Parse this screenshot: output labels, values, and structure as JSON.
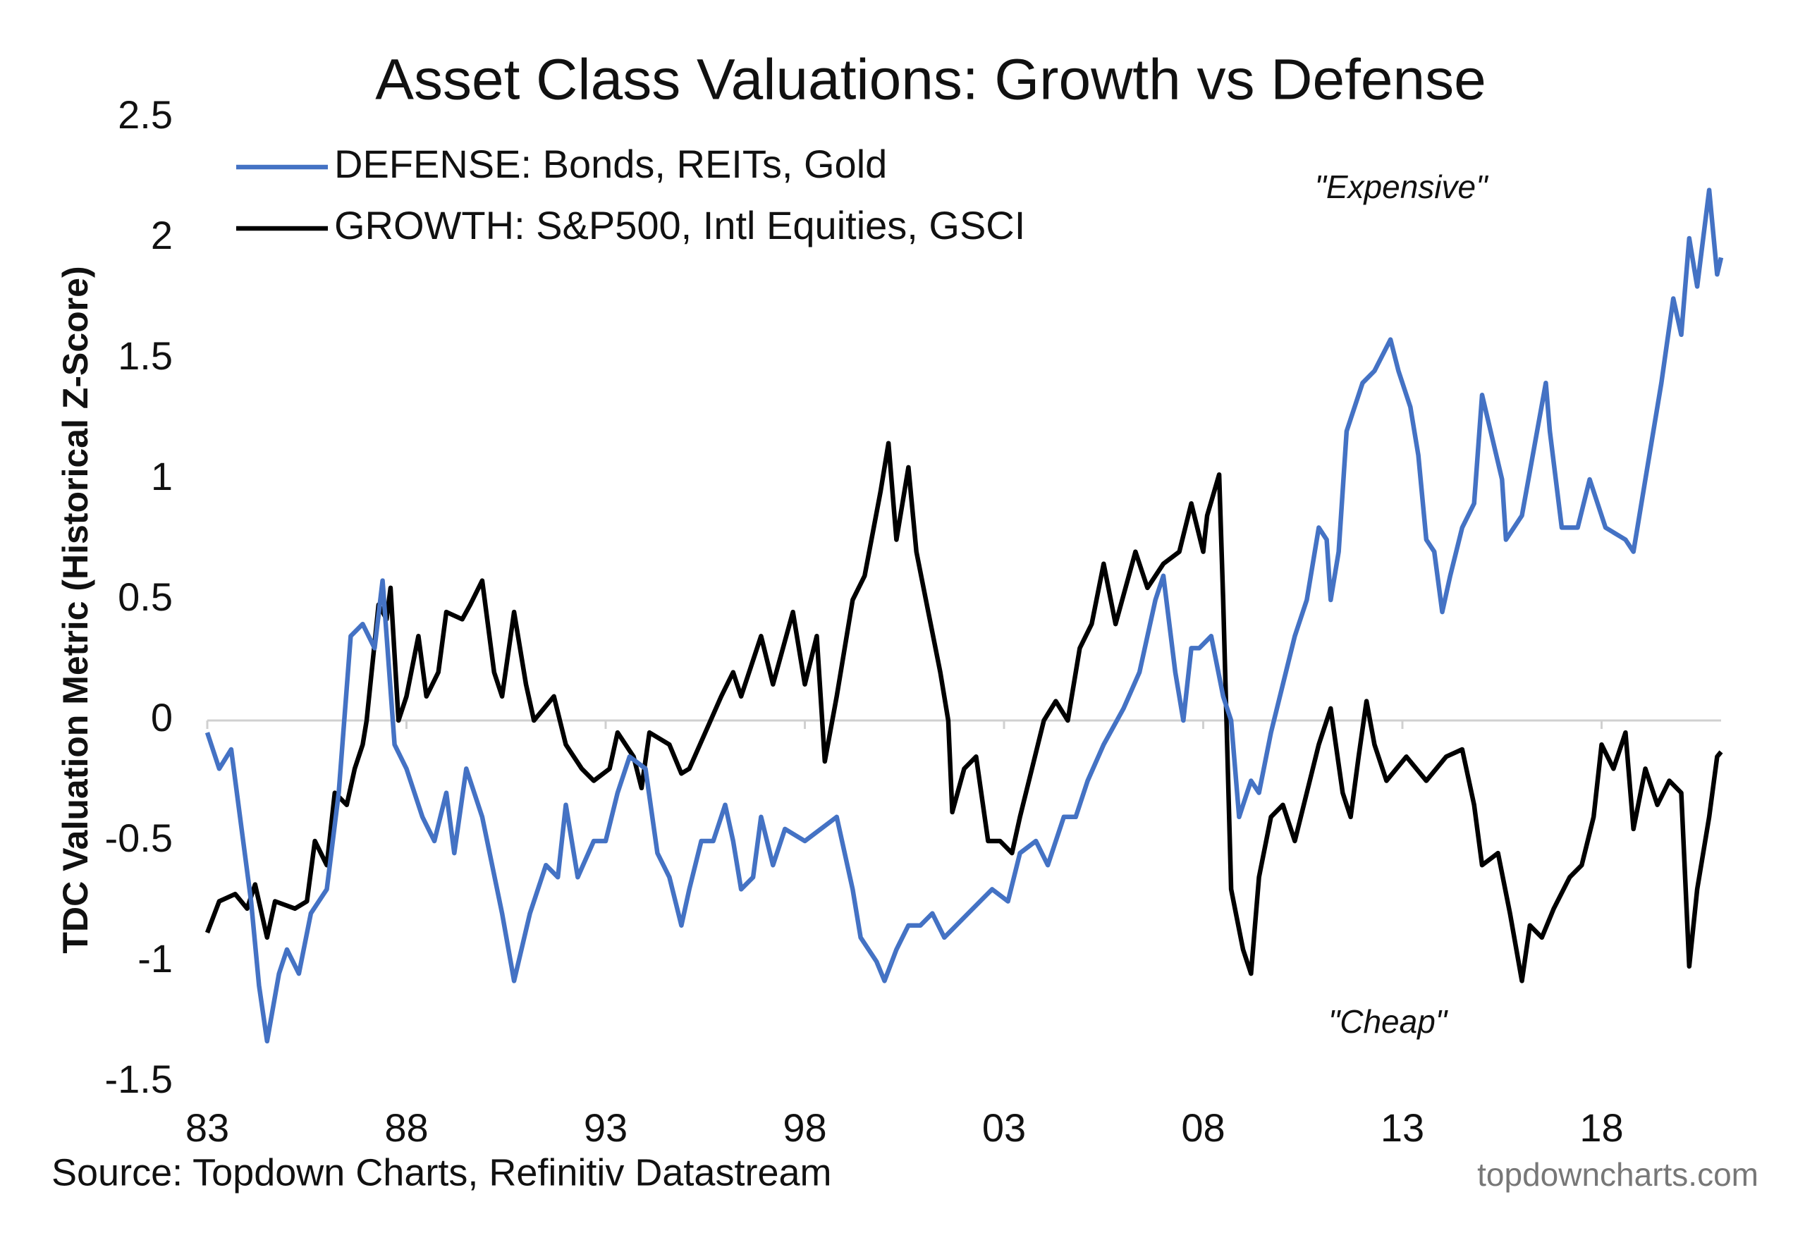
{
  "chart_data": {
    "type": "line",
    "title": "Asset Class Valuations: Growth vs Defense",
    "y_label": "TDC Valuation Metric (Historical Z-Score)",
    "annotations": [
      "\"Expensive\"",
      "\"Cheap\""
    ],
    "source": "Source: Topdown Charts, Refinitiv Datastream",
    "watermark": "topdowncharts.com",
    "xlim": [
      1983,
      2021
    ],
    "xticks": [
      {
        "value": 1983,
        "label": "83"
      },
      {
        "value": 1988,
        "label": "88"
      },
      {
        "value": 1993,
        "label": "93"
      },
      {
        "value": 1998,
        "label": "98"
      },
      {
        "value": 2003,
        "label": "03"
      },
      {
        "value": 2008,
        "label": "08"
      },
      {
        "value": 2013,
        "label": "13"
      },
      {
        "value": 2018,
        "label": "18"
      }
    ],
    "ylim": [
      -1.5,
      2.5
    ],
    "yticks": [
      -1.5,
      -1,
      -0.5,
      0,
      0.5,
      1,
      1.5,
      2,
      2.5
    ],
    "grid": false,
    "legend": "top-left",
    "series": [
      {
        "name": "DEFENSE: Bonds, REITs, Gold",
        "color": "#4472c4",
        "x": [
          1983.0,
          1983.3,
          1983.6,
          1983.9,
          1984.1,
          1984.3,
          1984.5,
          1984.8,
          1985.0,
          1985.3,
          1985.6,
          1986.0,
          1986.3,
          1986.6,
          1986.9,
          1987.2,
          1987.4,
          1987.7,
          1988.0,
          1988.4,
          1988.7,
          1989.0,
          1989.2,
          1989.5,
          1989.9,
          1990.4,
          1990.7,
          1991.1,
          1991.5,
          1991.8,
          1992.0,
          1992.3,
          1992.7,
          1993.0,
          1993.3,
          1993.6,
          1994.0,
          1994.3,
          1994.6,
          1994.9,
          1995.1,
          1995.4,
          1995.7,
          1996.0,
          1996.2,
          1996.4,
          1996.7,
          1996.9,
          1997.2,
          1997.5,
          1998.0,
          1998.8,
          1999.2,
          1999.4,
          1999.8,
          2000.0,
          2000.3,
          2000.6,
          2000.9,
          2001.2,
          2001.5,
          2002.1,
          2002.7,
          2003.1,
          2003.4,
          2003.8,
          2004.1,
          2004.5,
          2004.8,
          2005.1,
          2005.5,
          2006.0,
          2006.4,
          2006.8,
          2007.0,
          2007.3,
          2007.5,
          2007.7,
          2007.9,
          2008.2,
          2008.5,
          2008.7,
          2008.9,
          2009.2,
          2009.4,
          2009.7,
          2010.0,
          2010.3,
          2010.6,
          2010.9,
          2011.1,
          2011.2,
          2011.4,
          2011.6,
          2012.0,
          2012.3,
          2012.7,
          2012.9,
          2013.2,
          2013.4,
          2013.6,
          2013.8,
          2014.0,
          2014.2,
          2014.5,
          2014.8,
          2015.0,
          2015.5,
          2015.6,
          2016.0,
          2016.6,
          2016.7,
          2017.0,
          2017.4,
          2017.7,
          2018.1,
          2018.6,
          2018.8,
          2019.1,
          2019.5,
          2019.8,
          2020.0,
          2020.2,
          2020.4,
          2020.7,
          2020.9,
          2021.0
        ],
        "values": [
          -0.05,
          -0.2,
          -0.12,
          -0.5,
          -0.75,
          -1.1,
          -1.33,
          -1.05,
          -0.95,
          -1.05,
          -0.8,
          -0.7,
          -0.3,
          0.35,
          0.4,
          0.3,
          0.58,
          -0.1,
          -0.2,
          -0.4,
          -0.5,
          -0.3,
          -0.55,
          -0.2,
          -0.4,
          -0.8,
          -1.08,
          -0.8,
          -0.6,
          -0.65,
          -0.35,
          -0.65,
          -0.5,
          -0.5,
          -0.3,
          -0.15,
          -0.2,
          -0.55,
          -0.65,
          -0.85,
          -0.7,
          -0.5,
          -0.5,
          -0.35,
          -0.5,
          -0.7,
          -0.65,
          -0.4,
          -0.6,
          -0.45,
          -0.5,
          -0.4,
          -0.7,
          -0.9,
          -1.0,
          -1.08,
          -0.95,
          -0.85,
          -0.85,
          -0.8,
          -0.9,
          -0.8,
          -0.7,
          -0.75,
          -0.55,
          -0.5,
          -0.6,
          -0.4,
          -0.4,
          -0.25,
          -0.1,
          0.05,
          0.2,
          0.5,
          0.6,
          0.2,
          0.0,
          0.3,
          0.3,
          0.35,
          0.1,
          0.0,
          -0.4,
          -0.25,
          -0.3,
          -0.05,
          0.15,
          0.35,
          0.5,
          0.8,
          0.75,
          0.5,
          0.7,
          1.2,
          1.4,
          1.45,
          1.58,
          1.45,
          1.3,
          1.1,
          0.75,
          0.7,
          0.45,
          0.6,
          0.8,
          0.9,
          1.35,
          1.0,
          0.75,
          0.85,
          1.4,
          1.2,
          0.8,
          0.8,
          1.0,
          0.8,
          0.75,
          0.7,
          1.0,
          1.4,
          1.75,
          1.6,
          2.0,
          1.8,
          2.2,
          1.85,
          1.92
        ]
      },
      {
        "name": "GROWTH: S&P500, Intl Equities, GSCI",
        "color": "#000000",
        "x": [
          1983.0,
          1983.3,
          1983.7,
          1984.0,
          1984.2,
          1984.5,
          1984.7,
          1985.2,
          1985.5,
          1985.7,
          1986.0,
          1986.2,
          1986.5,
          1986.7,
          1986.9,
          1987.0,
          1987.3,
          1987.5,
          1987.6,
          1987.8,
          1988.0,
          1988.3,
          1988.5,
          1988.8,
          1989.0,
          1989.4,
          1989.6,
          1989.9,
          1990.2,
          1990.4,
          1990.7,
          1991.0,
          1991.2,
          1991.7,
          1992.0,
          1992.4,
          1992.7,
          1993.1,
          1993.3,
          1993.7,
          1993.9,
          1994.1,
          1994.6,
          1994.9,
          1995.1,
          1995.5,
          1995.9,
          1996.2,
          1996.4,
          1996.9,
          1997.2,
          1997.7,
          1998.0,
          1998.3,
          1998.5,
          1998.8,
          1999.2,
          1999.5,
          1999.9,
          2000.1,
          2000.3,
          2000.6,
          2000.8,
          2001.1,
          2001.4,
          2001.6,
          2001.7,
          2002.0,
          2002.3,
          2002.6,
          2002.9,
          2003.2,
          2003.4,
          2003.7,
          2004.0,
          2004.3,
          2004.6,
          2004.9,
          2005.2,
          2005.5,
          2005.8,
          2006.3,
          2006.6,
          2007.0,
          2007.4,
          2007.7,
          2008.0,
          2008.1,
          2008.4,
          2008.5,
          2008.7,
          2009.0,
          2009.2,
          2009.4,
          2009.7,
          2010.0,
          2010.3,
          2010.6,
          2010.9,
          2011.2,
          2011.5,
          2011.7,
          2011.9,
          2012.1,
          2012.3,
          2012.6,
          2013.1,
          2013.6,
          2014.1,
          2014.5,
          2014.8,
          2015.0,
          2015.4,
          2015.7,
          2016.0,
          2016.2,
          2016.5,
          2016.8,
          2017.2,
          2017.5,
          2017.8,
          2018.0,
          2018.3,
          2018.6,
          2018.8,
          2019.1,
          2019.4,
          2019.7,
          2020.0,
          2020.2,
          2020.4,
          2020.7,
          2020.9,
          2021.0
        ],
        "values": [
          -0.88,
          -0.75,
          -0.72,
          -0.78,
          -0.68,
          -0.9,
          -0.75,
          -0.78,
          -0.75,
          -0.5,
          -0.6,
          -0.3,
          -0.35,
          -0.2,
          -0.1,
          0.0,
          0.48,
          0.42,
          0.55,
          0.0,
          0.1,
          0.35,
          0.1,
          0.2,
          0.45,
          0.42,
          0.48,
          0.58,
          0.2,
          0.1,
          0.45,
          0.15,
          0.0,
          0.1,
          -0.1,
          -0.2,
          -0.25,
          -0.2,
          -0.05,
          -0.15,
          -0.28,
          -0.05,
          -0.1,
          -0.22,
          -0.2,
          -0.05,
          0.1,
          0.2,
          0.1,
          0.35,
          0.15,
          0.45,
          0.15,
          0.35,
          -0.17,
          0.1,
          0.5,
          0.6,
          0.95,
          1.15,
          0.75,
          1.05,
          0.7,
          0.45,
          0.2,
          0.0,
          -0.38,
          -0.2,
          -0.15,
          -0.5,
          -0.5,
          -0.55,
          -0.4,
          -0.2,
          0.0,
          0.08,
          0.0,
          0.3,
          0.4,
          0.65,
          0.4,
          0.7,
          0.55,
          0.65,
          0.7,
          0.9,
          0.7,
          0.85,
          1.02,
          0.5,
          -0.7,
          -0.95,
          -1.05,
          -0.65,
          -0.4,
          -0.35,
          -0.5,
          -0.3,
          -0.1,
          0.05,
          -0.3,
          -0.4,
          -0.15,
          0.08,
          -0.1,
          -0.25,
          -0.15,
          -0.25,
          -0.15,
          -0.12,
          -0.35,
          -0.6,
          -0.55,
          -0.8,
          -1.08,
          -0.85,
          -0.9,
          -0.78,
          -0.65,
          -0.6,
          -0.4,
          -0.1,
          -0.2,
          -0.05,
          -0.45,
          -0.2,
          -0.35,
          -0.25,
          -0.3,
          -1.02,
          -0.7,
          -0.4,
          -0.15,
          -0.13
        ]
      }
    ]
  }
}
